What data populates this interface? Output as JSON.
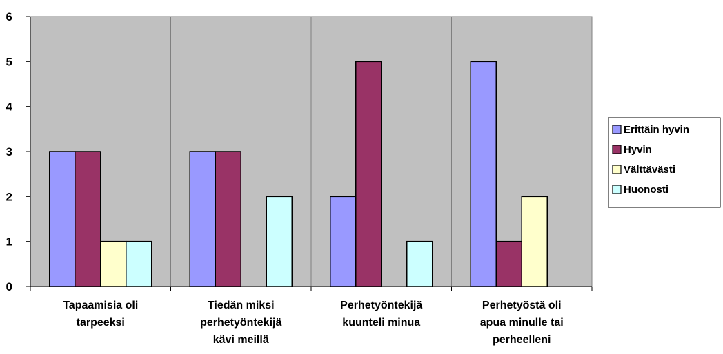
{
  "chart_data": {
    "type": "bar",
    "title": "",
    "xlabel": "",
    "ylabel": "",
    "ylim": [
      0,
      6
    ],
    "yticks": [
      0,
      1,
      2,
      3,
      4,
      5,
      6
    ],
    "grid": false,
    "legend_position": "right",
    "plot_background": "#c0c0c0",
    "categories": [
      [
        "Tapaamisia oli",
        "tarpeeksi"
      ],
      [
        "Tiedän miksi",
        "perhetyöntekijä",
        "kävi meillä"
      ],
      [
        "Perhetyöntekijä",
        "kuunteli minua"
      ],
      [
        "Perhetyöstä oli",
        "apua minulle tai",
        "perheelleni"
      ]
    ],
    "series": [
      {
        "name": "Erittäin hyvin",
        "color": "#9999ff",
        "values": [
          3,
          3,
          2,
          5
        ]
      },
      {
        "name": "Hyvin",
        "color": "#993366",
        "values": [
          3,
          3,
          5,
          1
        ]
      },
      {
        "name": "Välttävästi",
        "color": "#ffffcc",
        "values": [
          1,
          0,
          0,
          2
        ]
      },
      {
        "name": "Huonosti",
        "color": "#ccffff",
        "values": [
          1,
          2,
          1,
          0
        ]
      }
    ]
  }
}
